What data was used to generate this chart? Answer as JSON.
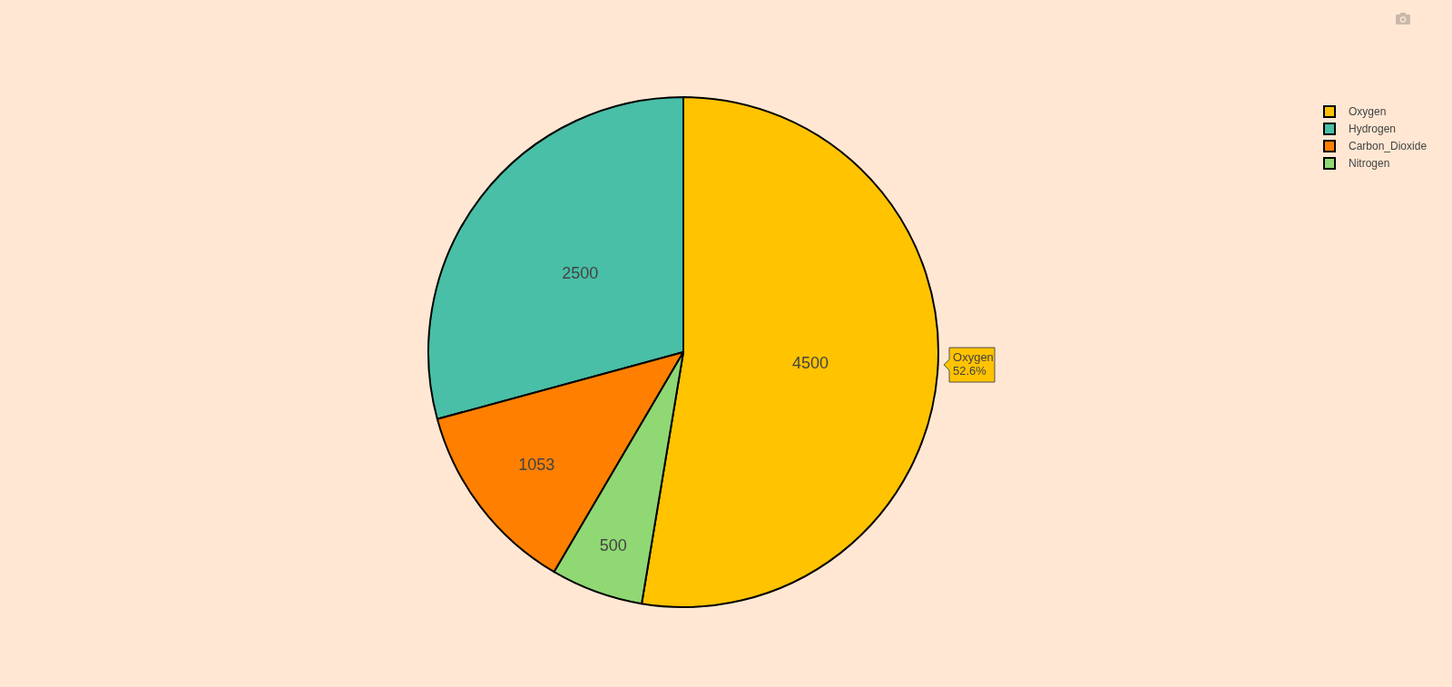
{
  "chart_data": {
    "type": "pie",
    "categories": [
      "Oxygen",
      "Hydrogen",
      "Carbon_Dioxide",
      "Nitrogen"
    ],
    "values": [
      4500,
      2500,
      1053,
      500
    ],
    "colors": [
      "#ffc300",
      "#48bfa6",
      "#ff7f00",
      "#90d874"
    ],
    "data_labels": true,
    "legend": "top right",
    "annotations": [
      "Oxygen\n52.6%"
    ]
  }
}
